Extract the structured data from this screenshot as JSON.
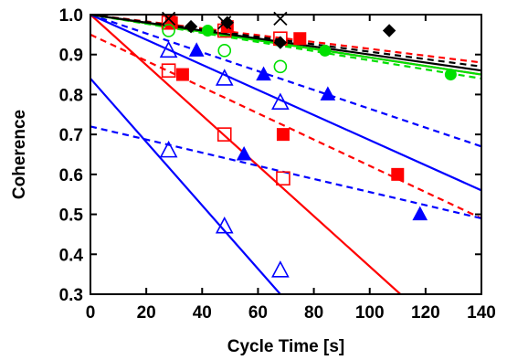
{
  "chart_data": {
    "type": "scatter",
    "title": "",
    "xlabel": "Cycle Time [s]",
    "ylabel": "Coherence",
    "xlim": [
      0,
      140
    ],
    "ylim": [
      0.3,
      1.0
    ],
    "x_ticks": [
      0,
      20,
      40,
      60,
      80,
      100,
      120,
      140
    ],
    "y_ticks": [
      0.3,
      0.4,
      0.5,
      0.6,
      0.7,
      0.8,
      0.9,
      1.0
    ],
    "x_tick_labels": [
      "0",
      "20",
      "40",
      "60",
      "80",
      "100",
      "120",
      "140"
    ],
    "y_tick_labels": [
      "0.3",
      "0.4",
      "0.5",
      "0.6",
      "0.7",
      "0.8",
      "0.9",
      "1.0"
    ],
    "grid": false,
    "colors": {
      "red": "#ff0000",
      "blue": "#0000ff",
      "green": "#00e000",
      "black": "#000000"
    },
    "series": [
      {
        "color": "red",
        "marker": "open-square",
        "points": [
          [
            28,
            0.86
          ],
          [
            48,
            0.7
          ],
          [
            69,
            0.59
          ],
          [
            28,
            0.98
          ],
          [
            48,
            0.96
          ],
          [
            68,
            0.94
          ]
        ]
      },
      {
        "color": "red",
        "marker": "filled-square",
        "points": [
          [
            33,
            0.85
          ],
          [
            69,
            0.7
          ],
          [
            110,
            0.6
          ],
          [
            29,
            0.98
          ],
          [
            49,
            0.97
          ],
          [
            75,
            0.94
          ]
        ]
      },
      {
        "color": "blue",
        "marker": "open-triangle",
        "points": [
          [
            28,
            0.66
          ],
          [
            48,
            0.47
          ],
          [
            68,
            0.36
          ],
          [
            28,
            0.91
          ],
          [
            48,
            0.84
          ],
          [
            68,
            0.78
          ]
        ]
      },
      {
        "color": "blue",
        "marker": "filled-triangle",
        "points": [
          [
            38,
            0.91
          ],
          [
            62,
            0.85
          ],
          [
            85,
            0.8
          ],
          [
            55,
            0.65
          ],
          [
            118,
            0.5
          ]
        ]
      },
      {
        "color": "green",
        "marker": "open-circle",
        "points": [
          [
            28,
            0.96
          ],
          [
            48,
            0.91
          ],
          [
            68,
            0.87
          ]
        ]
      },
      {
        "color": "green",
        "marker": "filled-circle",
        "points": [
          [
            42,
            0.96
          ],
          [
            84,
            0.91
          ],
          [
            129,
            0.85
          ]
        ]
      },
      {
        "color": "black",
        "marker": "x",
        "points": [
          [
            28,
            0.99
          ],
          [
            48,
            0.98
          ],
          [
            68,
            0.99
          ]
        ]
      },
      {
        "color": "black",
        "marker": "filled-diamond",
        "points": [
          [
            36,
            0.97
          ],
          [
            49,
            0.98
          ],
          [
            68,
            0.93
          ],
          [
            107,
            0.96
          ]
        ]
      }
    ],
    "fit_lines": [
      {
        "color": "red",
        "style": "solid",
        "from": [
          0,
          1.0
        ],
        "to": [
          111,
          0.3
        ]
      },
      {
        "color": "red",
        "style": "solid",
        "from": [
          0,
          1.0
        ],
        "to": [
          140,
          0.85
        ]
      },
      {
        "color": "red",
        "style": "dashed",
        "from": [
          0,
          0.95
        ],
        "to": [
          140,
          0.49
        ]
      },
      {
        "color": "red",
        "style": "dashed",
        "from": [
          0,
          1.0
        ],
        "to": [
          140,
          0.88
        ]
      },
      {
        "color": "blue",
        "style": "solid",
        "from": [
          0,
          0.84
        ],
        "to": [
          68,
          0.3
        ]
      },
      {
        "color": "blue",
        "style": "solid",
        "from": [
          0,
          1.0
        ],
        "to": [
          140,
          0.56
        ]
      },
      {
        "color": "blue",
        "style": "dashed",
        "from": [
          0,
          1.0
        ],
        "to": [
          140,
          0.67
        ]
      },
      {
        "color": "blue",
        "style": "dashed",
        "from": [
          0,
          0.72
        ],
        "to": [
          140,
          0.49
        ]
      },
      {
        "color": "green",
        "style": "solid",
        "from": [
          0,
          1.0
        ],
        "to": [
          140,
          0.85
        ]
      },
      {
        "color": "green",
        "style": "dashed",
        "from": [
          0,
          1.0
        ],
        "to": [
          140,
          0.84
        ]
      },
      {
        "color": "black",
        "style": "solid",
        "from": [
          0,
          1.0
        ],
        "to": [
          140,
          0.86
        ]
      },
      {
        "color": "black",
        "style": "dashed",
        "from": [
          0,
          1.0
        ],
        "to": [
          140,
          0.87
        ]
      }
    ]
  }
}
